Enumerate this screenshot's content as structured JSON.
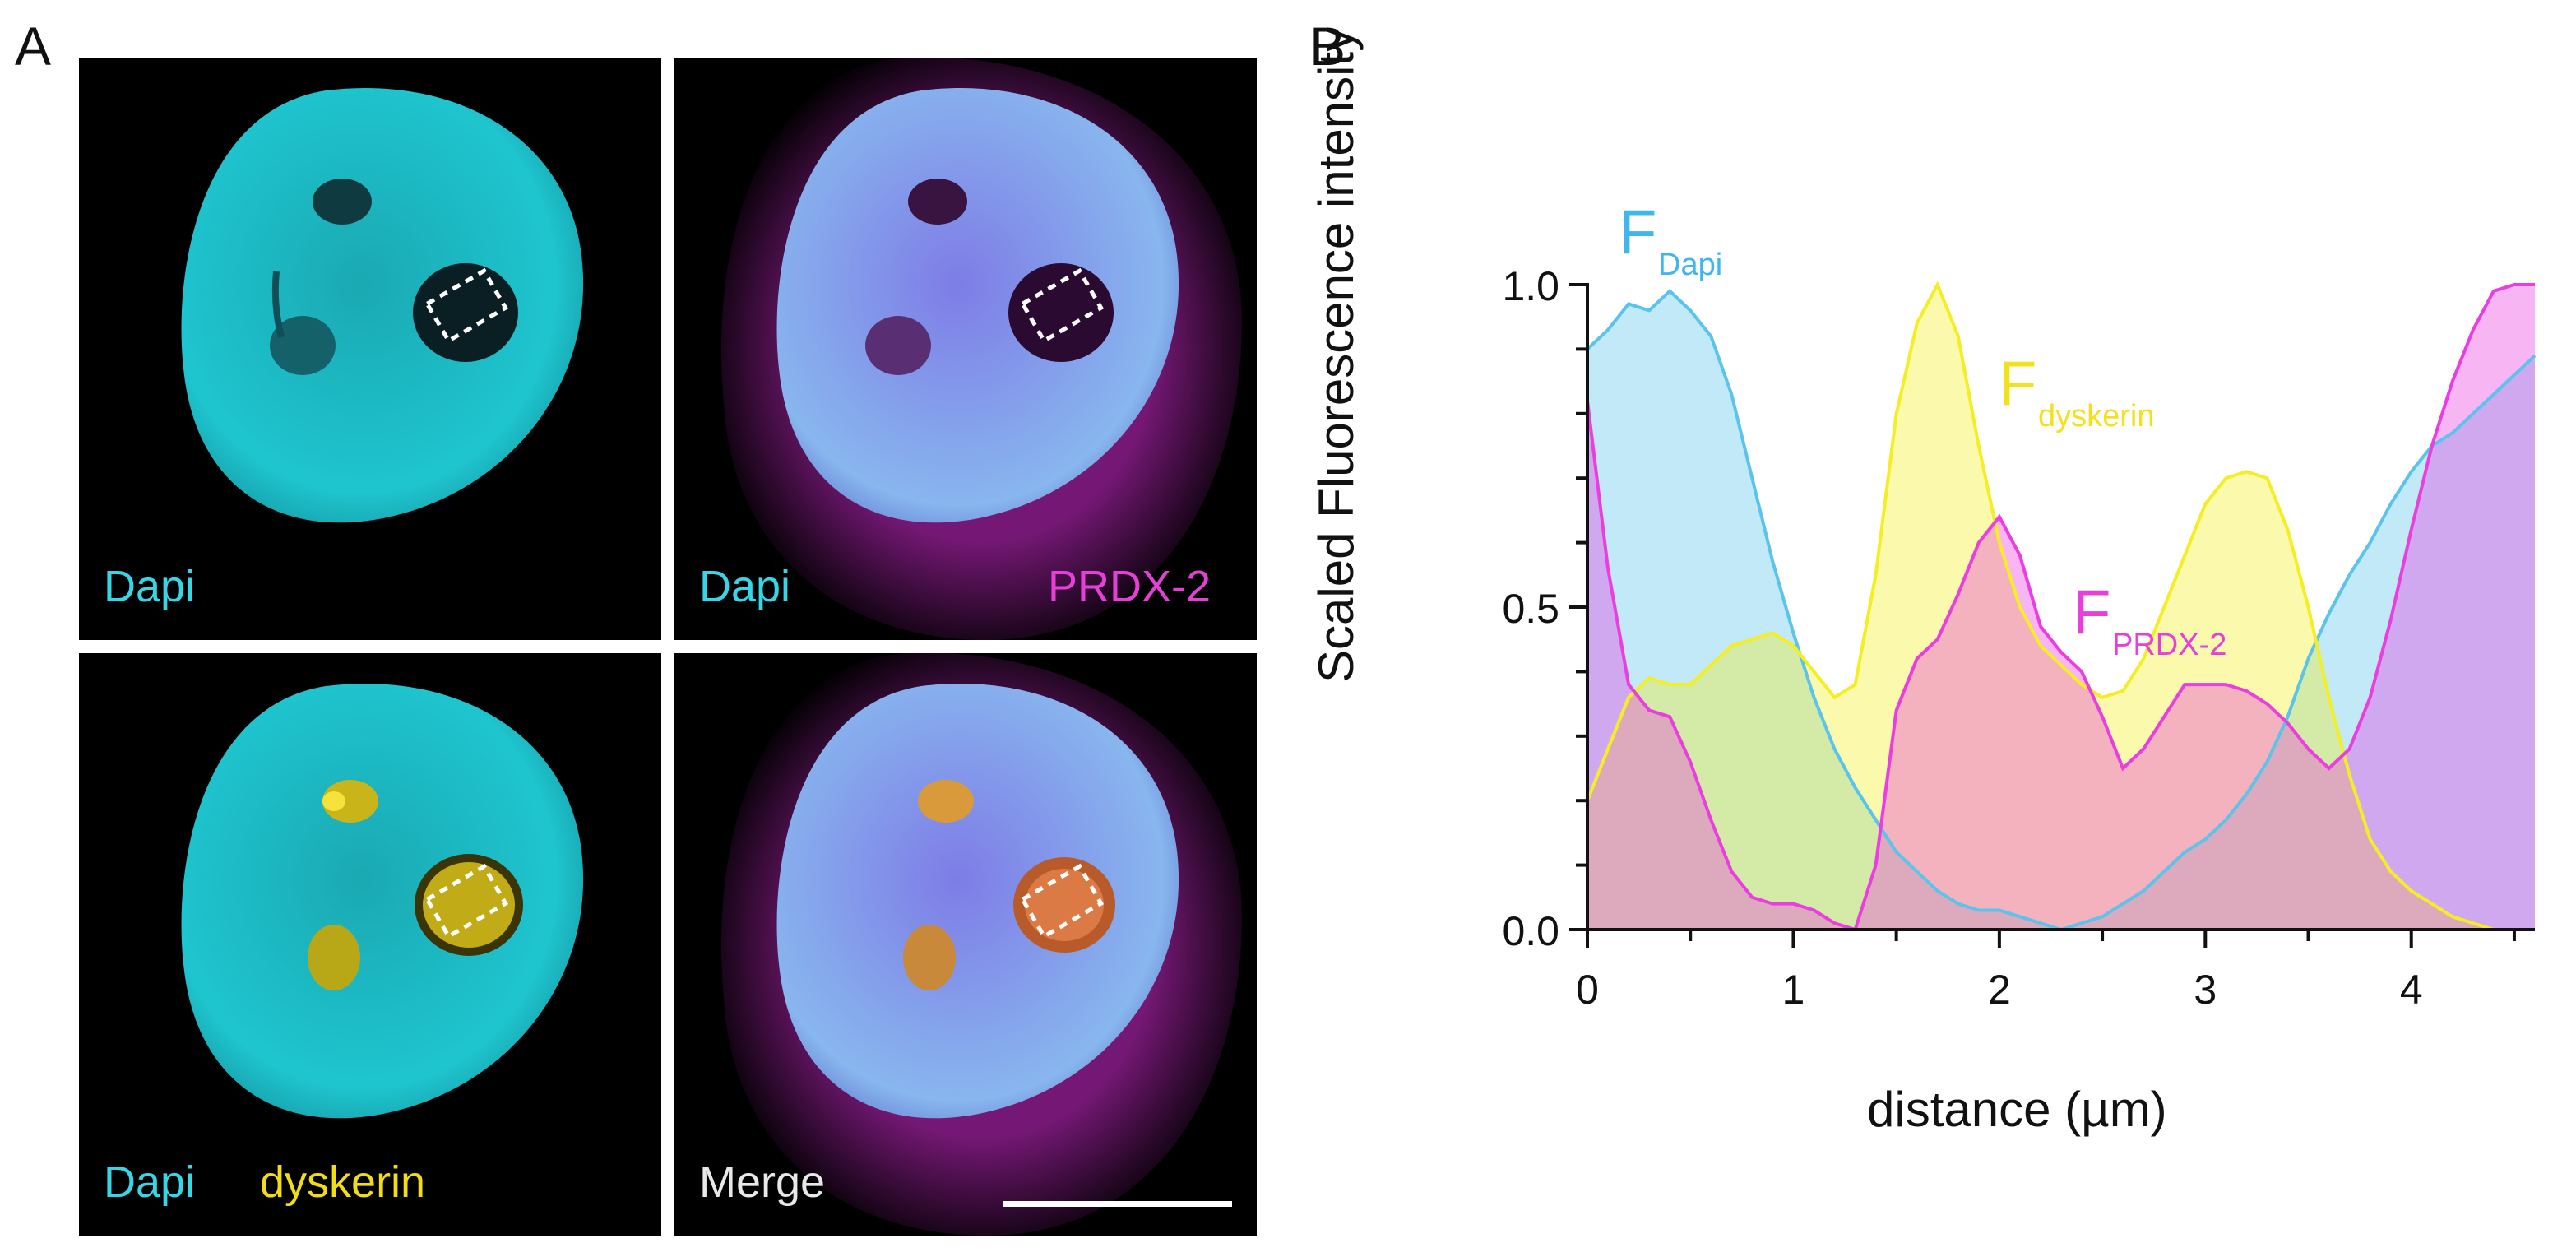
{
  "panel_labels": {
    "a": "A",
    "b": "B"
  },
  "micrographs": {
    "tile1": {
      "labels": [
        "Dapi"
      ]
    },
    "tile2": {
      "labels": [
        "Dapi",
        "PRDX-2"
      ]
    },
    "tile3": {
      "labels": [
        "Dapi",
        "dyskerin"
      ]
    },
    "tile4": {
      "labels": [
        "Merge"
      ]
    }
  },
  "colors": {
    "dapi": "#5bc4ec",
    "dyskerin": "#f4ee24",
    "prdx2": "#ea3ee0"
  },
  "chart_data": {
    "type": "area",
    "xlabel": "distance (µm)",
    "ylabel": "Scaled  Fluorescence intensity",
    "xlim": [
      0,
      4.6
    ],
    "ylim": [
      0,
      1.0
    ],
    "xticks": [
      "0",
      "1",
      "2",
      "3",
      "4"
    ],
    "yticks": [
      "0.0",
      "0.5",
      "1.0"
    ],
    "x": [
      0,
      0.1,
      0.2,
      0.3,
      0.4,
      0.5,
      0.6,
      0.7,
      0.8,
      0.9,
      1.0,
      1.1,
      1.2,
      1.3,
      1.4,
      1.5,
      1.6,
      1.7,
      1.8,
      1.9,
      2.0,
      2.1,
      2.2,
      2.3,
      2.4,
      2.5,
      2.6,
      2.7,
      2.8,
      2.9,
      3.0,
      3.1,
      3.2,
      3.3,
      3.4,
      3.5,
      3.6,
      3.7,
      3.8,
      3.9,
      4.0,
      4.1,
      4.2,
      4.3,
      4.4,
      4.5,
      4.6
    ],
    "series": [
      {
        "name": "Dapi",
        "label_main": "F",
        "label_sub": "Dapi",
        "values": [
          0.9,
          0.93,
          0.97,
          0.96,
          0.99,
          0.96,
          0.92,
          0.83,
          0.7,
          0.57,
          0.46,
          0.36,
          0.28,
          0.22,
          0.17,
          0.12,
          0.09,
          0.06,
          0.04,
          0.03,
          0.03,
          0.02,
          0.01,
          0.0,
          0.01,
          0.02,
          0.04,
          0.06,
          0.09,
          0.12,
          0.14,
          0.17,
          0.21,
          0.26,
          0.33,
          0.42,
          0.49,
          0.55,
          0.6,
          0.66,
          0.71,
          0.75,
          0.77,
          0.8,
          0.83,
          0.86,
          0.89
        ]
      },
      {
        "name": "dyskerin",
        "label_main": "F",
        "label_sub": "dyskerin",
        "values": [
          0.2,
          0.28,
          0.36,
          0.39,
          0.38,
          0.38,
          0.41,
          0.44,
          0.45,
          0.46,
          0.44,
          0.4,
          0.36,
          0.38,
          0.55,
          0.8,
          0.94,
          1.0,
          0.92,
          0.75,
          0.6,
          0.5,
          0.44,
          0.41,
          0.38,
          0.36,
          0.37,
          0.42,
          0.5,
          0.58,
          0.66,
          0.7,
          0.71,
          0.7,
          0.62,
          0.5,
          0.36,
          0.24,
          0.14,
          0.09,
          0.06,
          0.04,
          0.02,
          0.01,
          0.0,
          0.0,
          0.0
        ]
      },
      {
        "name": "PRDX-2",
        "label_main": "F",
        "label_sub": "PRDX-2",
        "values": [
          0.82,
          0.56,
          0.38,
          0.34,
          0.33,
          0.26,
          0.17,
          0.09,
          0.05,
          0.04,
          0.04,
          0.03,
          0.01,
          0.0,
          0.1,
          0.34,
          0.42,
          0.45,
          0.52,
          0.6,
          0.64,
          0.58,
          0.47,
          0.43,
          0.4,
          0.33,
          0.25,
          0.28,
          0.33,
          0.38,
          0.38,
          0.38,
          0.37,
          0.35,
          0.32,
          0.28,
          0.25,
          0.28,
          0.36,
          0.48,
          0.62,
          0.75,
          0.85,
          0.93,
          0.99,
          1.0,
          1.0
        ]
      }
    ]
  }
}
